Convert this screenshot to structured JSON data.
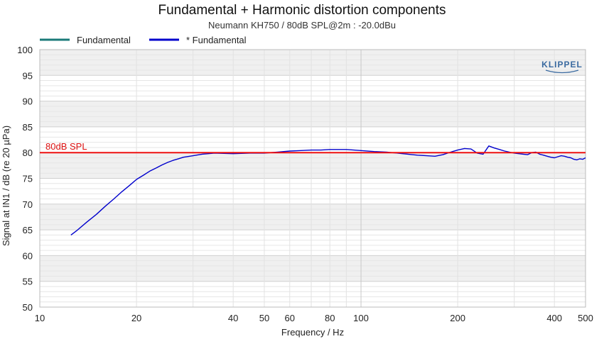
{
  "chart_data": {
    "type": "line",
    "title": "Fundamental + Harmonic distortion components",
    "subtitle": "Neumann KH750 / 80dB SPL@2m : -20.0dBu",
    "xlabel": "Frequency / Hz",
    "ylabel": "Signal at IN1 / dB (re 20 µPa)",
    "x_scale": "log",
    "xlim": [
      10,
      500
    ],
    "ylim": [
      50,
      100
    ],
    "x_ticks": [
      10,
      20,
      40,
      50,
      60,
      80,
      100,
      200,
      400,
      500
    ],
    "y_ticks": [
      50,
      55,
      60,
      65,
      70,
      75,
      80,
      85,
      90,
      95,
      100
    ],
    "grid": true,
    "legend_position": "top-left",
    "logo": "KLIPPEL",
    "series": [
      {
        "name": "Fundamental",
        "color": "#1a7a78",
        "x": [],
        "y": []
      },
      {
        "name": "* Fundamental",
        "color": "#0000cc",
        "x": [
          12.5,
          13,
          14,
          15,
          16,
          17,
          18,
          19,
          20,
          21,
          22,
          23,
          24,
          25,
          26,
          27,
          28,
          30,
          32,
          35,
          40,
          45,
          50,
          55,
          60,
          65,
          70,
          75,
          80,
          85,
          90,
          95,
          100,
          110,
          120,
          130,
          140,
          150,
          160,
          170,
          180,
          190,
          200,
          210,
          220,
          230,
          240,
          250,
          260,
          270,
          280,
          290,
          300,
          310,
          320,
          330,
          340,
          350,
          360,
          370,
          380,
          390,
          400,
          410,
          420,
          430,
          440,
          450,
          460,
          470,
          480,
          490,
          500
        ],
        "y": [
          64.0,
          64.8,
          66.5,
          68.0,
          69.6,
          71.0,
          72.4,
          73.6,
          74.8,
          75.6,
          76.4,
          77.0,
          77.6,
          78.1,
          78.5,
          78.8,
          79.1,
          79.4,
          79.7,
          79.9,
          79.8,
          79.9,
          79.9,
          80.1,
          80.3,
          80.4,
          80.5,
          80.5,
          80.6,
          80.6,
          80.6,
          80.5,
          80.4,
          80.2,
          80.1,
          79.9,
          79.7,
          79.5,
          79.4,
          79.3,
          79.6,
          80.1,
          80.5,
          80.8,
          80.7,
          79.9,
          79.7,
          81.3,
          80.9,
          80.6,
          80.3,
          80.1,
          79.9,
          79.8,
          79.7,
          79.6,
          80.0,
          80.1,
          79.7,
          79.5,
          79.3,
          79.1,
          79.0,
          79.2,
          79.4,
          79.3,
          79.1,
          79.0,
          78.7,
          78.6,
          78.8,
          78.7,
          79.0
        ]
      }
    ],
    "reference_line": {
      "label": "80dB SPL",
      "value": 80,
      "color": "#ee1111"
    }
  }
}
